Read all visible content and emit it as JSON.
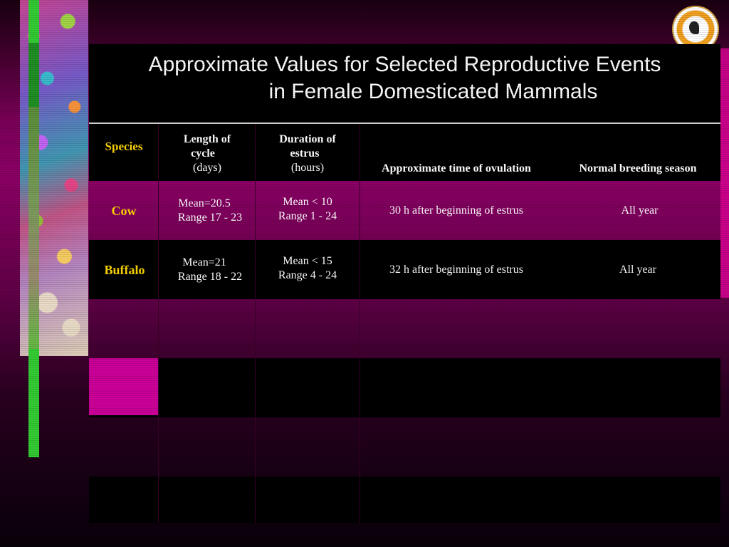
{
  "slide": {
    "title_line1": "Approximate Values for Selected Reproductive Events",
    "title_line2": "in  Female Domesticated Mammals"
  },
  "table": {
    "headers": {
      "species": "Species",
      "cycle_line1": "Length of",
      "cycle_line2": "cycle",
      "cycle_unit": "(days)",
      "estrus_line1": "Duration of",
      "estrus_line2": "estrus",
      "estrus_unit": "(hours)",
      "ovulation": "Approximate time of ovulation",
      "season": "Normal breeding season"
    },
    "rows": [
      {
        "species": "Cow",
        "cycle_mean": "Mean=20.5",
        "cycle_range": "Range 17 - 23",
        "estrus_mean": "Mean < 10",
        "estrus_range": "Range 1 - 24",
        "ovulation": "30 h after beginning of estrus",
        "season": "All year"
      },
      {
        "species": "Buffalo",
        "cycle_mean": "Mean=21",
        "cycle_range": "Range 18 - 22",
        "estrus_mean": "Mean < 15",
        "estrus_range": "Range 4 - 24",
        "ovulation": "32 h after beginning of estrus",
        "season": "All year"
      }
    ]
  },
  "colors": {
    "accent_pink": "#cc0099",
    "species_yellow": "#ffd700",
    "green_bar": "#33cc33"
  }
}
